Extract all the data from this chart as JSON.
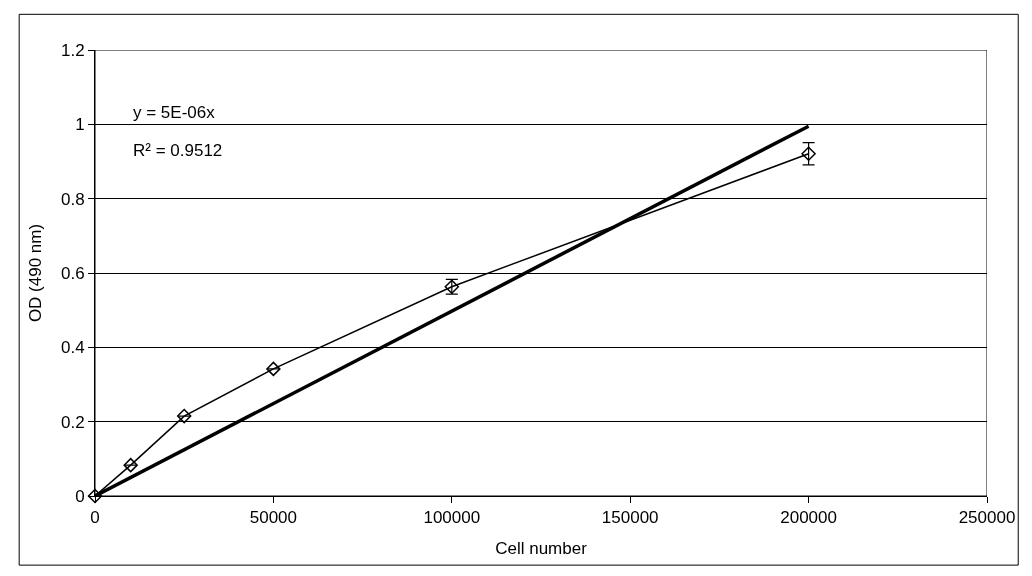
{
  "chart_data": {
    "type": "line",
    "xlabel": "Cell number",
    "ylabel": "OD (490 nm)",
    "series": [
      {
        "color": "#000000",
        "x": [
          0,
          10000,
          25000,
          50000,
          100000,
          200000
        ],
        "values": [
          0,
          0.083,
          0.215,
          0.342,
          0.563,
          0.921
        ],
        "errors": [
          null,
          null,
          null,
          null,
          0.02,
          0.03
        ],
        "marker": "diamond"
      },
      {
        "color": "#000000",
        "type": "line",
        "x": [
          0,
          200000
        ],
        "values": [
          0,
          0.995
        ],
        "marker": "none"
      }
    ],
    "xlim": [
      0,
      250000
    ],
    "xticks": [
      0,
      50000,
      100000,
      150000,
      200000,
      250000
    ],
    "ylim": [
      0,
      1.2
    ],
    "yticks": [
      0,
      0.2,
      0.4,
      0.6,
      0.8,
      1,
      1.2
    ],
    "grid": "y",
    "line_style": "solid",
    "annotations": [
      "y = 5E-06x",
      "R² = 0.9512"
    ]
  }
}
